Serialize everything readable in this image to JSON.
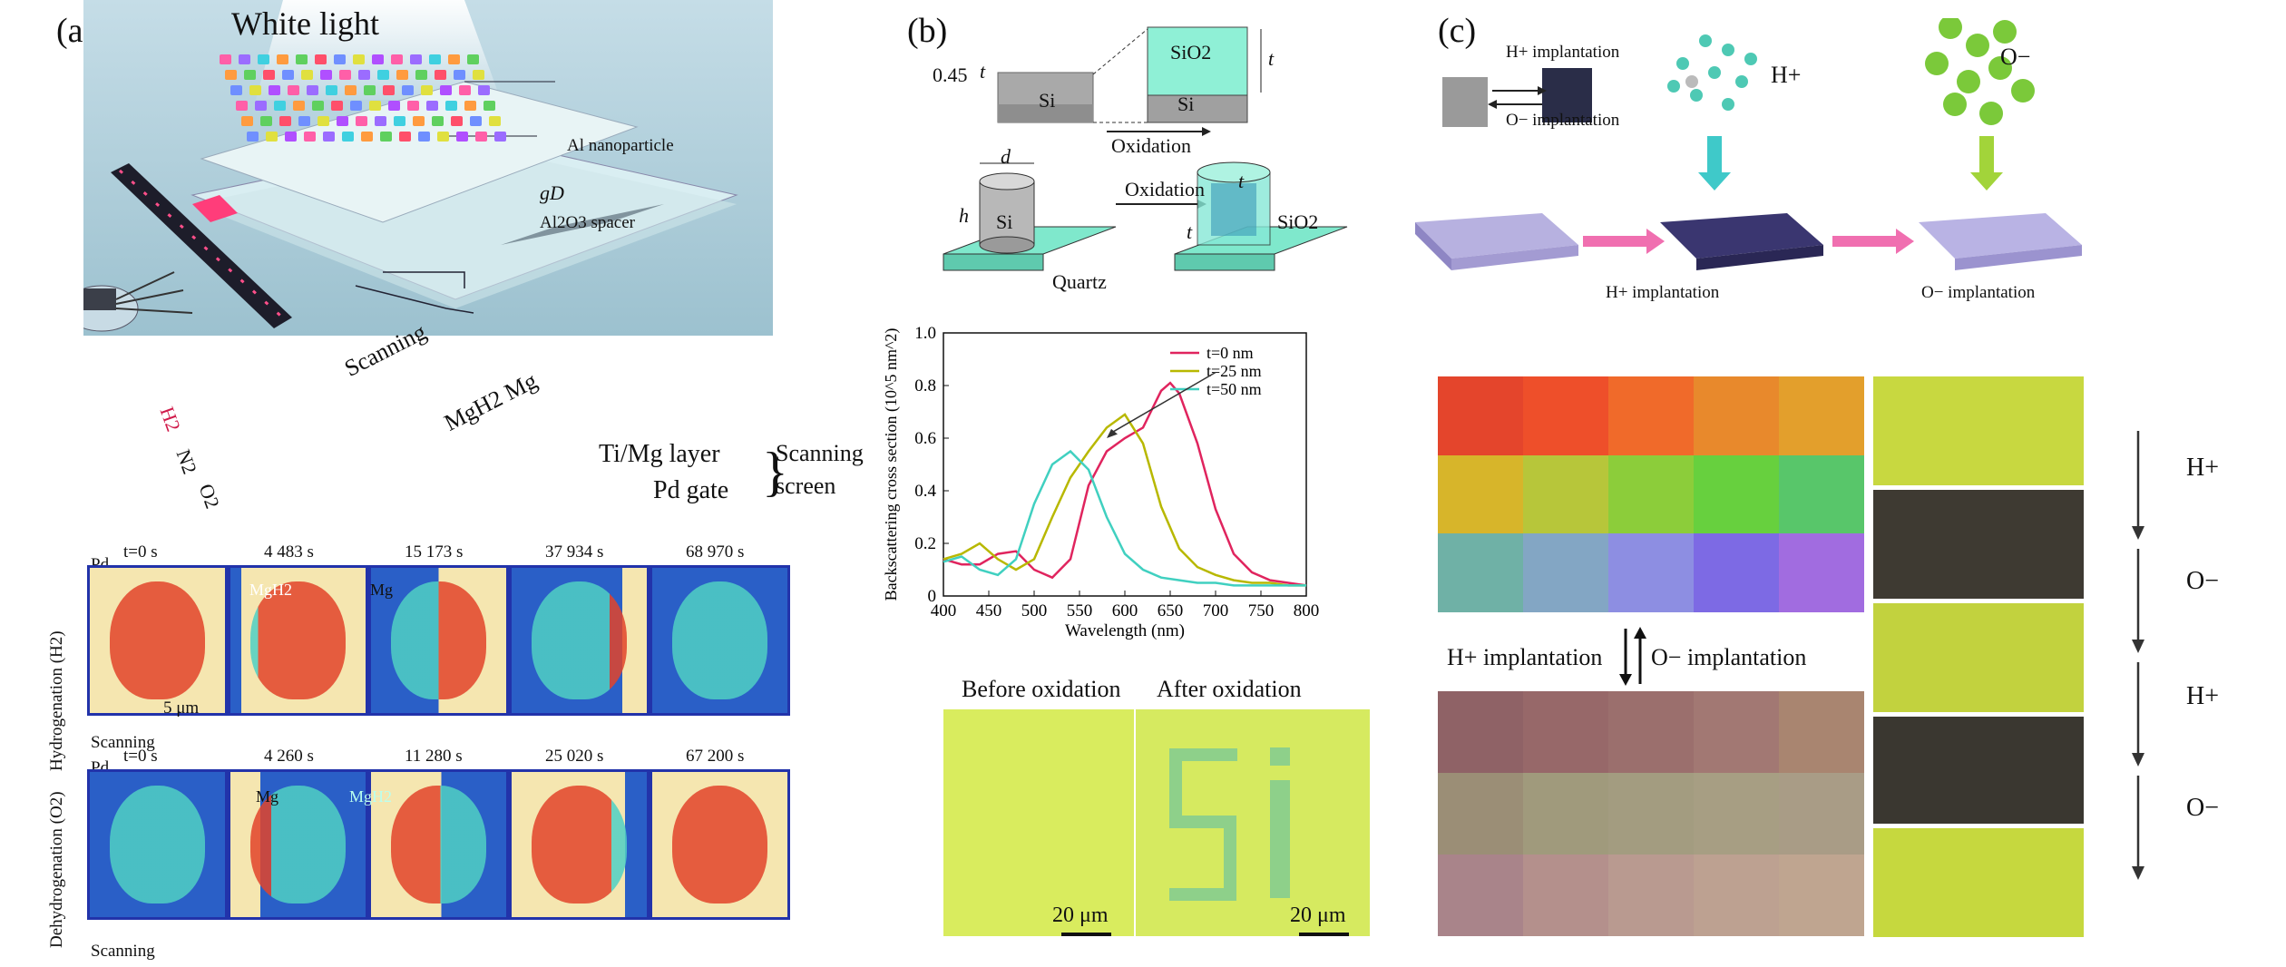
{
  "panel_a": {
    "label": "(a)",
    "title": "White light",
    "annotations": {
      "nanoparticle": "Al nanoparticle",
      "spacer": "Al2O3 spacer",
      "gD": "gD",
      "scanning": "Scanning",
      "mgh2_mg": "MgH2  Mg",
      "ti_mg": "Ti/Mg layer",
      "pd_gate": "Pd gate",
      "scanning_screen_1": "Scanning",
      "scanning_screen_2": "screen",
      "gas_h2": "H2",
      "gas_n2": "N2",
      "gas_o2": "O2"
    },
    "hydrogenation": {
      "side_label": "Hydrogenation (H2)",
      "pd": "Pd",
      "times": [
        "t=0 s",
        "4 483 s",
        "15 173 s",
        "37 934 s",
        "68 970 s"
      ],
      "left_mark": "MgH2",
      "right_mark": "Mg",
      "scale": "5 μm",
      "scanning": "Scanning"
    },
    "dehydrogenation": {
      "side_label": "Dehydrogenation (O2)",
      "pd": "Pd",
      "times": [
        "t=0 s",
        "4 260 s",
        "11 280 s",
        "25 020 s",
        "67 200 s"
      ],
      "left_mark": "Mg",
      "right_mark": "MgH2",
      "scanning": "Scanning"
    }
  },
  "panel_b": {
    "label": "(b)",
    "top": {
      "thickness": "0.45",
      "t": "t",
      "si": "Si",
      "sio2": "SiO2",
      "oxidation": "Oxidation"
    },
    "middle": {
      "d": "d",
      "h": "h",
      "si": "Si",
      "oxidation": "Oxidation",
      "t": "t",
      "sio2": "SiO2",
      "quartz": "Quartz"
    },
    "bottom": {
      "before": "Before oxidation",
      "after": "After oxidation",
      "scale_left": "20 μm",
      "scale_right": "20 μm",
      "letters": "Si"
    }
  },
  "chart_data": {
    "type": "line",
    "xlabel": "Wavelength (nm)",
    "ylabel": "Backscattering cross section (10^5 nm^2)",
    "xlim": [
      400,
      800
    ],
    "ylim": [
      0,
      1.0
    ],
    "xticks": [
      400,
      450,
      500,
      550,
      600,
      650,
      700,
      750,
      800
    ],
    "yticks": [
      0,
      0.2,
      0.4,
      0.6,
      0.8,
      1.0
    ],
    "legend_position": "top-right",
    "series": [
      {
        "name": "t=0 nm",
        "color": "#e0245e",
        "x": [
          400,
          420,
          440,
          460,
          480,
          500,
          520,
          540,
          560,
          580,
          600,
          620,
          640,
          650,
          660,
          680,
          700,
          720,
          740,
          760,
          780,
          800
        ],
        "y": [
          0.14,
          0.12,
          0.12,
          0.16,
          0.17,
          0.1,
          0.07,
          0.14,
          0.42,
          0.55,
          0.6,
          0.64,
          0.78,
          0.81,
          0.77,
          0.58,
          0.33,
          0.16,
          0.09,
          0.06,
          0.05,
          0.04
        ]
      },
      {
        "name": "t=25 nm",
        "color": "#b8b800",
        "x": [
          400,
          420,
          440,
          460,
          480,
          500,
          520,
          540,
          560,
          580,
          600,
          620,
          640,
          660,
          680,
          700,
          720,
          740,
          760,
          780,
          800
        ],
        "y": [
          0.14,
          0.16,
          0.2,
          0.14,
          0.1,
          0.14,
          0.3,
          0.45,
          0.55,
          0.64,
          0.69,
          0.58,
          0.34,
          0.18,
          0.11,
          0.08,
          0.06,
          0.05,
          0.05,
          0.04,
          0.04
        ]
      },
      {
        "name": "t=50 nm",
        "color": "#40d0c0",
        "x": [
          400,
          420,
          440,
          460,
          480,
          500,
          520,
          540,
          560,
          580,
          600,
          620,
          640,
          660,
          680,
          700,
          720,
          740,
          760,
          780,
          800
        ],
        "y": [
          0.13,
          0.15,
          0.1,
          0.08,
          0.14,
          0.35,
          0.5,
          0.55,
          0.48,
          0.3,
          0.16,
          0.1,
          0.07,
          0.06,
          0.05,
          0.05,
          0.04,
          0.04,
          0.04,
          0.04,
          0.04
        ]
      }
    ]
  },
  "panel_c": {
    "label": "(c)",
    "schematic": {
      "h_impl": "H+ implantation",
      "o_impl": "O− implantation",
      "h_ion": "H+",
      "o_ion": "O−",
      "arrow_h": "H+ implantation",
      "arrow_o": "O− implantation"
    },
    "grid_arrows": {
      "h_impl": "H+ implantation",
      "o_impl": "O− implantation"
    },
    "right_steps": [
      "H+",
      "O−",
      "H+",
      "O−"
    ],
    "top_grid_colors": [
      [
        "#e4452c",
        "#ee4f2a",
        "#f06a2a",
        "#e8892c",
        "#e39f2c"
      ],
      [
        "#d7b52a",
        "#b7c63a",
        "#8ccd3a",
        "#67d03e",
        "#58c66a"
      ],
      [
        "#6fb1a6",
        "#83a6c4",
        "#8d8ee2",
        "#7d6ae4",
        "#a16ce0"
      ]
    ],
    "bottom_grid_colors": [
      [
        "#8f6266",
        "#976869",
        "#9b6f6d",
        "#a27873",
        "#a98570"
      ],
      [
        "#9b8e76",
        "#a09a7c",
        "#a39c80",
        "#a79e83",
        "#a99c86"
      ],
      [
        "#a9848a",
        "#b4908c",
        "#b99a90",
        "#bda191",
        "#bfa590"
      ]
    ]
  }
}
